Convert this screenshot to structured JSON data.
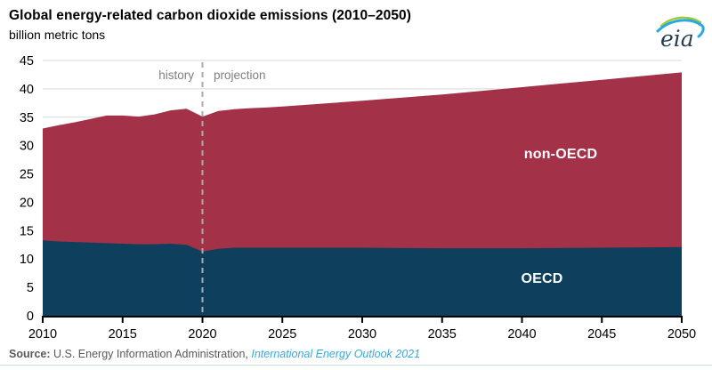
{
  "header": {
    "title": "Global energy-related carbon dioxide emissions (2010–2050)",
    "subtitle": "billion metric tons"
  },
  "logo": {
    "text": "eia"
  },
  "annotations": {
    "history": "history",
    "projection": "projection"
  },
  "series_labels": {
    "non_oecd": "non-OECD",
    "oecd": "OECD"
  },
  "source": {
    "label": "Source:",
    "text": " U.S. Energy Information Administration, ",
    "link": "International Energy Outlook 2021"
  },
  "colors": {
    "non_oecd_fill": "#A33148",
    "oecd_fill": "#0E3F5C",
    "gridline": "#D9D9D9",
    "divider": "#ABABAB",
    "axis": "#000000",
    "annotation_text": "#7F7F7F",
    "source_text": "#595959",
    "link_blue": "#3BA8DC",
    "logo_green": "#9DC93B",
    "logo_blue": "#2AA9E0",
    "logo_text": "#253D4C"
  },
  "chart_data": {
    "type": "area",
    "stacked": true,
    "title": "Global energy-related carbon dioxide emissions (2010–2050)",
    "ylabel": "billion metric tons",
    "xlabel": "",
    "grid": true,
    "legend_position": "in-plot labels",
    "xlim": [
      2010,
      2050
    ],
    "ylim": [
      0,
      45
    ],
    "x_ticks": [
      2010,
      2015,
      2020,
      2025,
      2030,
      2035,
      2040,
      2045,
      2050
    ],
    "y_ticks": [
      0,
      5,
      10,
      15,
      20,
      25,
      30,
      35,
      40,
      45
    ],
    "history_end": 2020,
    "x": [
      2010,
      2011,
      2012,
      2013,
      2014,
      2015,
      2016,
      2017,
      2018,
      2019,
      2020,
      2021,
      2022,
      2023,
      2024,
      2025,
      2030,
      2035,
      2040,
      2045,
      2050
    ],
    "series": [
      {
        "name": "OECD",
        "color": "#0E3F5C",
        "values": [
          13.3,
          13.1,
          13.0,
          12.9,
          12.8,
          12.7,
          12.6,
          12.6,
          12.7,
          12.5,
          11.3,
          11.8,
          12.0,
          12.0,
          12.0,
          12.0,
          12.0,
          11.9,
          11.9,
          12.0,
          12.1
        ]
      },
      {
        "name": "non-OECD",
        "color": "#A33148",
        "values": [
          19.7,
          20.5,
          21.1,
          21.8,
          22.5,
          22.6,
          22.5,
          22.9,
          23.5,
          24.0,
          23.8,
          24.3,
          24.4,
          24.6,
          24.7,
          24.9,
          25.9,
          27.1,
          28.4,
          29.6,
          30.8
        ]
      }
    ],
    "totals_note": "stacked total rises from 33.0 (2010) to peak 36.5 (2019), dips to 35.1 (2020), grows to 42.9 (2050)"
  }
}
